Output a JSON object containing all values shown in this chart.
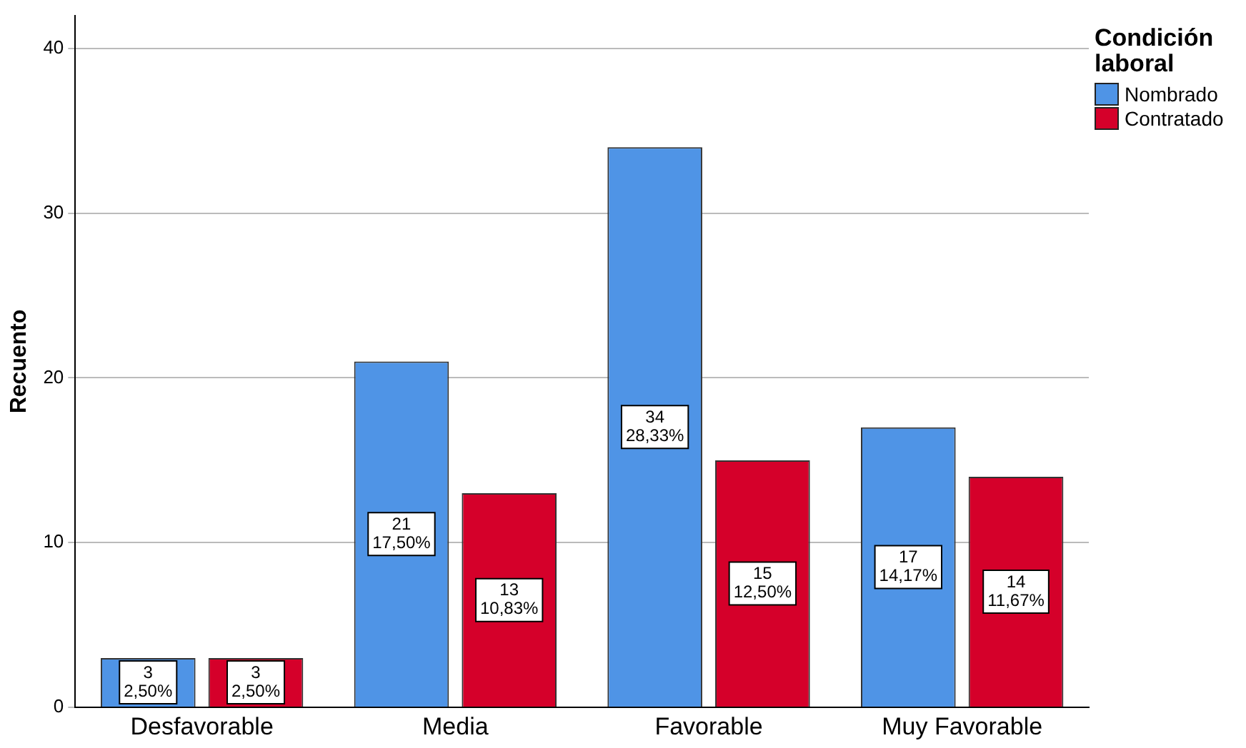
{
  "chart_data": {
    "type": "bar",
    "ylabel": "Recuento",
    "legend_title": "Condición laboral",
    "categories": [
      "Desfavorable",
      "Media",
      "Favorable",
      "Muy Favorable"
    ],
    "series": [
      {
        "name": "Nombrado",
        "color": "#4f94e6",
        "values": [
          3,
          21,
          34,
          17
        ],
        "value_labels": [
          "3\n2,50%",
          "21\n17,50%",
          "34\n28,33%",
          "17\n14,17%"
        ]
      },
      {
        "name": "Contratado",
        "color": "#d5002a",
        "values": [
          3,
          13,
          15,
          14
        ],
        "value_labels": [
          "3\n2,50%",
          "13\n10,83%",
          "15\n12,50%",
          "14\n11,67%"
        ]
      }
    ],
    "ylim": [
      0,
      42
    ],
    "yticks": [
      0,
      10,
      20,
      30,
      40
    ],
    "grid": "y",
    "legend": "top right"
  }
}
